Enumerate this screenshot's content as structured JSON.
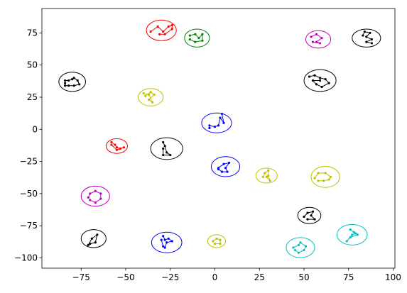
{
  "chart_data": {
    "type": "scatter",
    "title": "",
    "xlabel": "",
    "ylabel": "",
    "xlim": [
      -97,
      101
    ],
    "ylim": [
      -108,
      94
    ],
    "grid": false,
    "x_ticks": [
      -75,
      -50,
      -25,
      0,
      25,
      50,
      75,
      100
    ],
    "y_ticks": [
      -100,
      -75,
      -50,
      -25,
      0,
      25,
      50,
      75
    ],
    "colors": {
      "red": "#ff0000",
      "green": "#008000",
      "blue": "#0000ff",
      "black": "#000000",
      "yellow": "#bfbf00",
      "magenta": "#bf00bf",
      "cyan": "#00bfbf"
    },
    "clusters": [
      {
        "color": "red",
        "center": [
          -30,
          77
        ],
        "rx": 8.4,
        "ry": 8.0,
        "points": [
          [
            -36,
            76
          ],
          [
            -32,
            80
          ],
          [
            -29,
            76
          ],
          [
            -26,
            80
          ],
          [
            -24,
            81
          ],
          [
            -24,
            78
          ],
          [
            -28,
            74
          ],
          [
            -31,
            74
          ]
        ]
      },
      {
        "color": "green",
        "center": [
          -10,
          71
        ],
        "rx": 7.0,
        "ry": 7.0,
        "points": [
          [
            -14,
            73
          ],
          [
            -11,
            74
          ],
          [
            -9,
            71
          ],
          [
            -7,
            74
          ],
          [
            -7,
            69
          ],
          [
            -11,
            68
          ],
          [
            -14,
            70
          ]
        ]
      },
      {
        "color": "magenta",
        "center": [
          58,
          70
        ],
        "rx": 7.0,
        "ry": 6.8,
        "points": [
          [
            54,
            72
          ],
          [
            57,
            74
          ],
          [
            60,
            71
          ],
          [
            57,
            68
          ],
          [
            59,
            67
          ],
          [
            55,
            68
          ]
        ]
      },
      {
        "color": "black",
        "center": [
          85,
          71
        ],
        "rx": 8.0,
        "ry": 7.0,
        "points": [
          [
            83,
            73
          ],
          [
            84,
            76
          ],
          [
            87,
            75
          ],
          [
            85,
            72
          ],
          [
            88,
            70
          ],
          [
            85,
            68
          ],
          [
            88,
            67
          ]
        ]
      },
      {
        "color": "black",
        "center": [
          -80,
          37
        ],
        "rx": 7.5,
        "ry": 7.5,
        "points": [
          [
            -84,
            38
          ],
          [
            -82,
            38
          ],
          [
            -80,
            39
          ],
          [
            -79,
            40
          ],
          [
            -77,
            38
          ],
          [
            -76,
            35
          ],
          [
            -79,
            34
          ],
          [
            -82,
            34
          ],
          [
            -84,
            34
          ],
          [
            -84,
            36
          ]
        ]
      },
      {
        "color": "black",
        "center": [
          59,
          38
        ],
        "rx": 9.0,
        "ry": 8.5,
        "points": [
          [
            53,
            41
          ],
          [
            56,
            42
          ],
          [
            59,
            40
          ],
          [
            62,
            39
          ],
          [
            64,
            36
          ],
          [
            60,
            33
          ],
          [
            57,
            35
          ],
          [
            55,
            38
          ],
          [
            59,
            38
          ]
        ]
      },
      {
        "color": "yellow",
        "center": [
          -36,
          25
        ],
        "rx": 7.0,
        "ry": 6.8,
        "points": [
          [
            -39,
            26
          ],
          [
            -36,
            29
          ],
          [
            -34,
            27
          ],
          [
            -37,
            23
          ],
          [
            -35,
            21
          ],
          [
            -37,
            27
          ],
          [
            -40,
            28
          ]
        ]
      },
      {
        "color": "blue",
        "center": [
          1,
          5
        ],
        "rx": 8.4,
        "ry": 7.7,
        "points": [
          [
            -3,
            1
          ],
          [
            -3,
            3
          ],
          [
            0,
            2
          ],
          [
            2,
            3
          ],
          [
            3,
            9
          ],
          [
            5,
            5
          ],
          [
            4,
            12
          ]
        ]
      },
      {
        "color": "red",
        "center": [
          -55,
          -13
        ],
        "rx": 6.0,
        "ry": 5.7,
        "points": [
          [
            -58,
            -10
          ],
          [
            -56,
            -12
          ],
          [
            -55,
            -14
          ],
          [
            -53,
            -15
          ],
          [
            -51,
            -14
          ],
          [
            -55,
            -16
          ],
          [
            -58,
            -12
          ]
        ]
      },
      {
        "color": "black",
        "center": [
          -27,
          -15
        ],
        "rx": 9.0,
        "ry": 8.5,
        "points": [
          [
            -29,
            -10
          ],
          [
            -28,
            -13
          ],
          [
            -27,
            -18
          ],
          [
            -25,
            -20
          ],
          [
            -29,
            -20
          ],
          [
            -29,
            -15
          ]
        ]
      },
      {
        "color": "blue",
        "center": [
          6,
          -29
        ],
        "rx": 8.0,
        "ry": 7.8,
        "points": [
          [
            2,
            -30
          ],
          [
            5,
            -27
          ],
          [
            8,
            -26
          ],
          [
            6,
            -30
          ],
          [
            7,
            -33
          ],
          [
            4,
            -33
          ],
          [
            2,
            -31
          ]
        ]
      },
      {
        "color": "yellow",
        "center": [
          29,
          -36
        ],
        "rx": 6.0,
        "ry": 5.8,
        "points": [
          [
            27,
            -37
          ],
          [
            28,
            -34
          ],
          [
            30,
            -32
          ],
          [
            30,
            -36
          ],
          [
            31,
            -40
          ],
          [
            29,
            -37
          ]
        ]
      },
      {
        "color": "yellow",
        "center": [
          62,
          -37
        ],
        "rx": 8.0,
        "ry": 8.2,
        "points": [
          [
            56,
            -38
          ],
          [
            58,
            -34
          ],
          [
            62,
            -34
          ],
          [
            65,
            -37
          ],
          [
            64,
            -39
          ],
          [
            61,
            -40
          ],
          [
            58,
            -40
          ]
        ]
      },
      {
        "color": "magenta",
        "center": [
          -67,
          -52
        ],
        "rx": 8.0,
        "ry": 7.8,
        "points": [
          [
            -71,
            -53
          ],
          [
            -70,
            -50
          ],
          [
            -67,
            -48
          ],
          [
            -64,
            -50
          ],
          [
            -64,
            -54
          ],
          [
            -67,
            -57
          ],
          [
            -70,
            -55
          ]
        ]
      },
      {
        "color": "black",
        "center": [
          53,
          -67
        ],
        "rx": 6.5,
        "ry": 6.3,
        "points": [
          [
            50,
            -68
          ],
          [
            52,
            -65
          ],
          [
            55,
            -64
          ],
          [
            54,
            -67
          ],
          [
            56,
            -70
          ],
          [
            52,
            -70
          ]
        ]
      },
      {
        "color": "cyan",
        "center": [
          77,
          -82
        ],
        "rx": 8.5,
        "ry": 8.0,
        "points": [
          [
            76,
            -78
          ],
          [
            78,
            -80
          ],
          [
            80,
            -82
          ],
          [
            76,
            -84
          ],
          [
            74,
            -87
          ],
          [
            77,
            -82
          ],
          [
            79,
            -81
          ]
        ]
      },
      {
        "color": "black",
        "center": [
          -68,
          -85
        ],
        "rx": 7.0,
        "ry": 7.0,
        "points": [
          [
            -71,
            -90
          ],
          [
            -69,
            -85
          ],
          [
            -66,
            -82
          ],
          [
            -67,
            -88
          ],
          [
            -70,
            -89
          ]
        ]
      },
      {
        "color": "blue",
        "center": [
          -27,
          -88
        ],
        "rx": 8.5,
        "ry": 8.0,
        "points": [
          [
            -29,
            -83
          ],
          [
            -28,
            -86
          ],
          [
            -26,
            -85
          ],
          [
            -24,
            -87
          ],
          [
            -27,
            -88
          ],
          [
            -28,
            -92
          ],
          [
            -29,
            -91
          ],
          [
            -30,
            -86
          ]
        ]
      },
      {
        "color": "yellow",
        "center": [
          1,
          -87
        ],
        "rx": 5.0,
        "ry": 5.0,
        "points": [
          [
            -1,
            -87
          ],
          [
            1,
            -85
          ],
          [
            3,
            -86
          ],
          [
            3,
            -89
          ],
          [
            0,
            -89
          ]
        ]
      },
      {
        "color": "cyan",
        "center": [
          48,
          -92
        ],
        "rx": 8.0,
        "ry": 7.8,
        "points": [
          [
            44,
            -92
          ],
          [
            47,
            -90
          ],
          [
            48,
            -88
          ],
          [
            51,
            -91
          ],
          [
            50,
            -94
          ],
          [
            47,
            -96
          ],
          [
            45,
            -94
          ]
        ]
      }
    ]
  }
}
